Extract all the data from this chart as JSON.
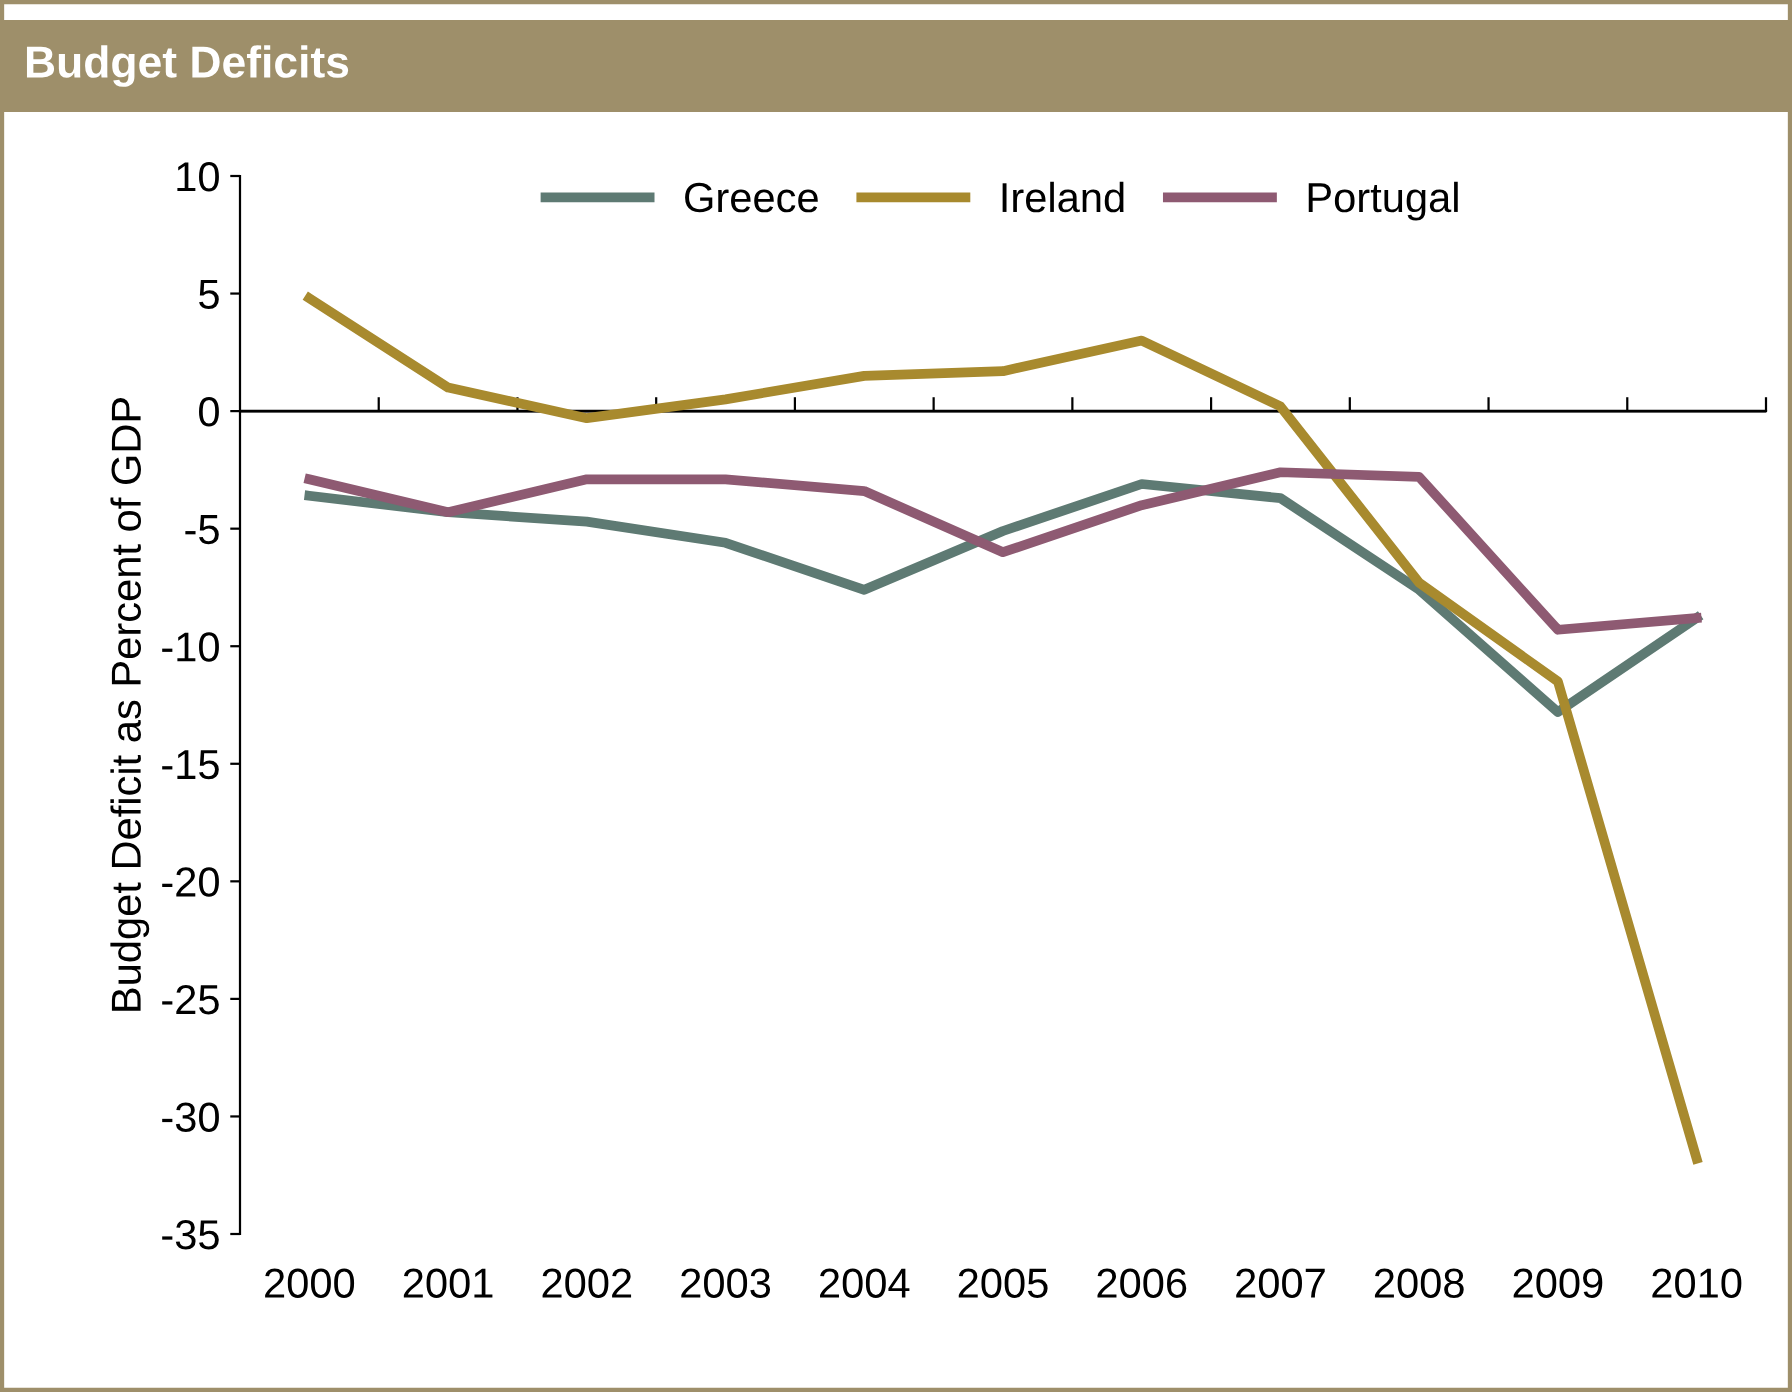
{
  "chart_data": {
    "type": "line",
    "title": "Budget Deficits",
    "ylabel": "Budget Deficit as Percent of GDP",
    "categories": [
      "2000",
      "2001",
      "2002",
      "2003",
      "2004",
      "2005",
      "2006",
      "2007",
      "2008",
      "2009",
      "2010"
    ],
    "series": [
      {
        "name": "Greece",
        "color": "#5e7a73",
        "values": [
          -3.6,
          -4.3,
          -4.7,
          -5.6,
          -7.6,
          -5.1,
          -3.1,
          -3.7,
          -7.6,
          -12.8,
          -8.8
        ]
      },
      {
        "name": "Ireland",
        "color": "#a88a2e",
        "values": [
          4.8,
          1.0,
          -0.3,
          0.5,
          1.5,
          1.7,
          3.0,
          0.2,
          -7.3,
          -11.5,
          -31.8
        ]
      },
      {
        "name": "Portugal",
        "color": "#8e5a72",
        "values": [
          -2.9,
          -4.3,
          -2.9,
          -2.9,
          -3.4,
          -6.0,
          -4.0,
          -2.6,
          -2.8,
          -9.3,
          -8.8
        ]
      }
    ],
    "ylim": [
      -35,
      10
    ],
    "yticks": [
      -35,
      -30,
      -25,
      -20,
      -15,
      -10,
      -5,
      0,
      5,
      10
    ],
    "ref_lines": [
      {
        "axis": "y",
        "value": 0
      }
    ],
    "grid": false,
    "legend": "top",
    "marker": "none",
    "line_style": "solid"
  }
}
